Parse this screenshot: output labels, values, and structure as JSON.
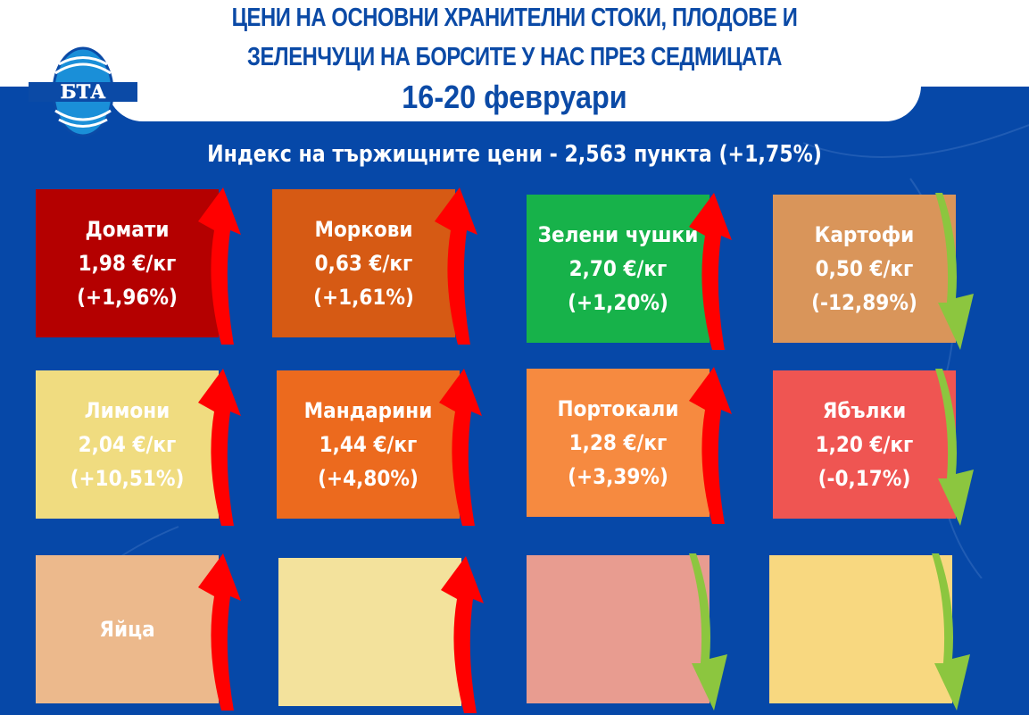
{
  "header": {
    "title_line1": "ЦЕНИ НА ОСНОВНИ ХРАНИТЕЛНИ СТОКИ, ПЛОДОВЕ И",
    "title_line2": "ЗЕЛЕНЧУЦИ НА БОРСИТЕ У НАС ПРЕЗ СЕДМИЦАТА",
    "period": "16-20 февруари",
    "logo_text": "БТА"
  },
  "index": "Индекс на тържищните цени - 2,563 пункта (+1,75%)",
  "colors": {
    "background": "#0648a8",
    "up_arrow": "#ff0000",
    "down_arrow": "#8cc63f"
  },
  "products": [
    {
      "name": "Домати",
      "price": "1,98 €/кг",
      "change": "(+1,96%)",
      "trend": "up",
      "color": "#b40000"
    },
    {
      "name": "Моркови",
      "price": "0,63 €/кг",
      "change": "(+1,61%)",
      "trend": "up",
      "color": "#d65a14"
    },
    {
      "name": "Зелени чушки",
      "price": "2,70 €/кг",
      "change": "(+1,20%)",
      "trend": "up",
      "color": "#17b24a"
    },
    {
      "name": "Картофи",
      "price": "0,50 €/кг",
      "change": "(-12,89%)",
      "trend": "down",
      "color": "#d9955a"
    },
    {
      "name": "Лимони",
      "price": "2,04 €/кг",
      "change": "(+10,51%)",
      "trend": "up",
      "color": "#f0dc80"
    },
    {
      "name": "Мандарини",
      "price": "1,44 €/кг",
      "change": "(+4,80%)",
      "trend": "up",
      "color": "#ec6a1e"
    },
    {
      "name": "Портокали",
      "price": "1,28 €/кг",
      "change": "(+3,39%)",
      "trend": "up",
      "color": "#f68a40"
    },
    {
      "name": "Ябълки",
      "price": "1,20 €/кг",
      "change": "(-0,17%)",
      "trend": "down",
      "color": "#ef5552"
    },
    {
      "name": "Яйца",
      "trend": "up",
      "color": "#ecb98c"
    },
    {
      "trend": "up",
      "color": "#f3e29c"
    },
    {
      "trend": "down",
      "color": "#e89c90"
    },
    {
      "trend": "down",
      "color": "#f8d880"
    }
  ]
}
